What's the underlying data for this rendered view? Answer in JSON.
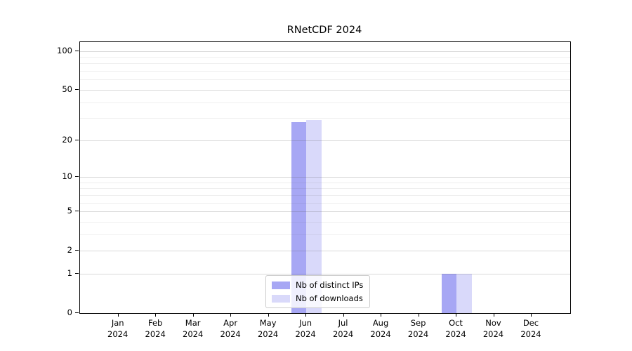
{
  "title": "RNetCDF 2024",
  "chart_data": {
    "type": "bar",
    "title": "RNetCDF 2024",
    "categories": [
      "Jan 2024",
      "Feb 2024",
      "Mar 2024",
      "Apr 2024",
      "May 2024",
      "Jun 2024",
      "Jul 2024",
      "Aug 2024",
      "Sep 2024",
      "Oct 2024",
      "Nov 2024",
      "Dec 2024"
    ],
    "series": [
      {
        "name": "Nb of distinct IPs",
        "color": "#a7a7f4",
        "values": [
          0,
          0,
          0,
          0,
          0,
          28,
          0,
          0,
          0,
          1,
          0,
          0
        ]
      },
      {
        "name": "Nb of downloads",
        "color": "#d9d9fa",
        "values": [
          0,
          0,
          0,
          0,
          0,
          29,
          0,
          0,
          0,
          1,
          0,
          0
        ]
      }
    ],
    "xlabel": "",
    "ylabel": "",
    "yscale": "log1p",
    "yticks": [
      0,
      1,
      2,
      5,
      10,
      20,
      50,
      100
    ],
    "yticks_minor": [
      3,
      4,
      6,
      7,
      8,
      9,
      30,
      40,
      60,
      70,
      80,
      90
    ],
    "ylim": [
      0,
      117
    ],
    "grid": true,
    "grid_on_top_of_bars": true,
    "legend_position": "lower center",
    "plot_background": "#ffffff",
    "axis_color": "#000000"
  }
}
